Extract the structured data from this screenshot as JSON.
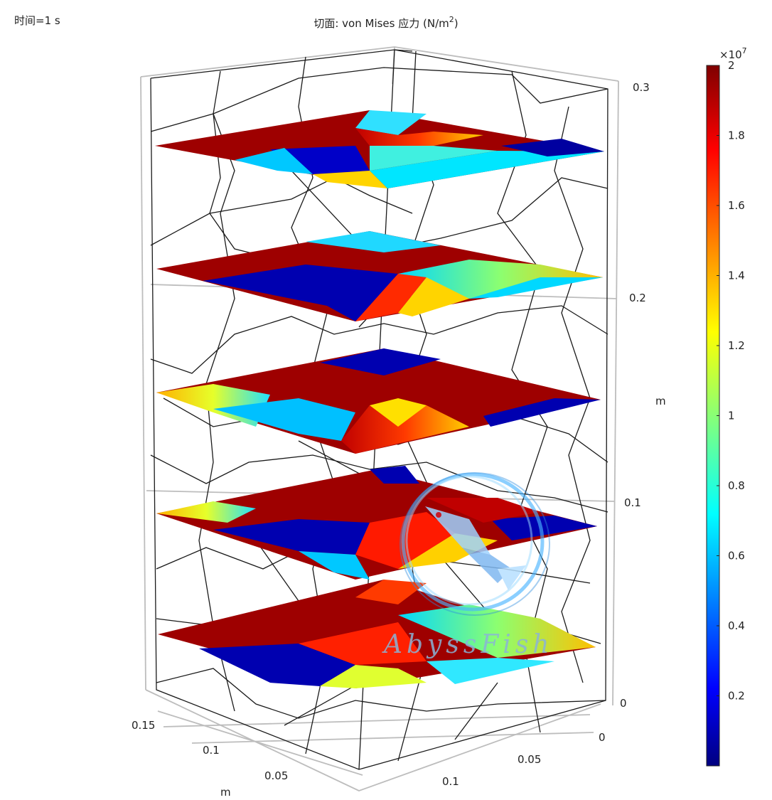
{
  "time_label": "时间=1 s",
  "title": {
    "prefix": "切面: von Mises 应力 (N/m",
    "sup": "2",
    "suffix": ")"
  },
  "watermark": "AbyssFish",
  "chart_data": {
    "type": "heatmap",
    "plot": "3D slice plot",
    "colormap": "jet",
    "slice_count": 5,
    "axes": {
      "z": {
        "unit": "m",
        "ticks": [
          "0",
          "0.1",
          "0.2",
          "0.3"
        ],
        "range": [
          0,
          0.3
        ]
      },
      "y": {
        "unit": "m",
        "ticks": [
          "0.15",
          "0.1",
          "0.05"
        ]
      },
      "x": {
        "unit": "m",
        "ticks": [
          "0",
          "0.05",
          "0.1"
        ]
      }
    },
    "colorbar": {
      "exponent_base": "×10",
      "exponent_power": "7",
      "range": [
        0,
        2
      ],
      "ticks": [
        "2",
        "1.8",
        "1.6",
        "1.4",
        "1.2",
        "1",
        "0.8",
        "0.6",
        "0.4",
        "0.2"
      ]
    }
  }
}
